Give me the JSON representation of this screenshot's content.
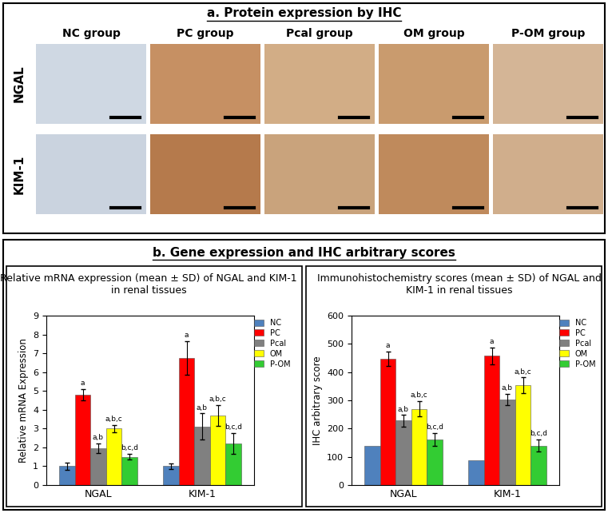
{
  "panel_a": {
    "title": "a. Protein expression by IHC",
    "groups": [
      "NC group",
      "PC group",
      "Pcal group",
      "OM group",
      "P-OM group"
    ],
    "markers": [
      "NGAL",
      "KIM-1"
    ]
  },
  "panel_b": {
    "title": "b. Gene expression and IHC arbitrary scores"
  },
  "chart_data": [
    {
      "type": "bar",
      "title": "Relative mRNA expression (mean ± SD) of NGAL and KIM-1 in renal tissues",
      "y_label": "Relative mRNA Expression",
      "categories": [
        "NGAL",
        "KIM-1"
      ],
      "ylim": [
        0,
        9
      ],
      "yticks": [
        0,
        1,
        2,
        3,
        4,
        5,
        6,
        7,
        8,
        9
      ],
      "legend": "upper right",
      "series": [
        {
          "name": "NC",
          "color": "#4f81bd",
          "values": [
            1.0,
            1.0
          ],
          "errors": [
            0.2,
            0.15
          ],
          "annotations": [
            null,
            null
          ]
        },
        {
          "name": "PC",
          "color": "#ff0000",
          "values": [
            4.8,
            6.75
          ],
          "errors": [
            0.3,
            0.9
          ],
          "annotations": [
            "a",
            "a"
          ]
        },
        {
          "name": "Pcal",
          "color": "#808080",
          "values": [
            1.95,
            3.1
          ],
          "errors": [
            0.25,
            0.7
          ],
          "annotations": [
            "a,b",
            "a,b"
          ]
        },
        {
          "name": "OM",
          "color": "#ffff00",
          "values": [
            3.0,
            3.7
          ],
          "errors": [
            0.2,
            0.55
          ],
          "annotations": [
            "a,b,c",
            "a,b,c"
          ]
        },
        {
          "name": "P-OM",
          "color": "#33cc33",
          "values": [
            1.5,
            2.2
          ],
          "errors": [
            0.15,
            0.55
          ],
          "annotations": [
            "b,c,d",
            "b,c,d"
          ]
        }
      ]
    },
    {
      "type": "bar",
      "title": "Immunohistochemistry scores (mean ± SD) of NGAL and KIM-1 in renal tissues",
      "y_label": "IHC arbitrary score",
      "categories": [
        "NGAL",
        "KIM-1"
      ],
      "ylim": [
        0,
        600
      ],
      "yticks": [
        0,
        100,
        200,
        300,
        400,
        500,
        600
      ],
      "legend": "upper right",
      "series": [
        {
          "name": "NC",
          "color": "#4f81bd",
          "values": [
            138,
            88
          ],
          "errors": [
            null,
            null
          ],
          "annotations": [
            null,
            null
          ]
        },
        {
          "name": "PC",
          "color": "#ff0000",
          "values": [
            448,
            458
          ],
          "errors": [
            25,
            30
          ],
          "annotations": [
            "a",
            "a"
          ]
        },
        {
          "name": "Pcal",
          "color": "#808080",
          "values": [
            228,
            302
          ],
          "errors": [
            20,
            20
          ],
          "annotations": [
            "a,b",
            "a,b"
          ]
        },
        {
          "name": "OM",
          "color": "#ffff00",
          "values": [
            270,
            353
          ],
          "errors": [
            28,
            28
          ],
          "annotations": [
            "a,b,c",
            "a,b,c"
          ]
        },
        {
          "name": "P-OM",
          "color": "#33cc33",
          "values": [
            162,
            140
          ],
          "errors": [
            22,
            22
          ],
          "annotations": [
            "b,c,d",
            "b,c,d"
          ]
        }
      ]
    }
  ]
}
